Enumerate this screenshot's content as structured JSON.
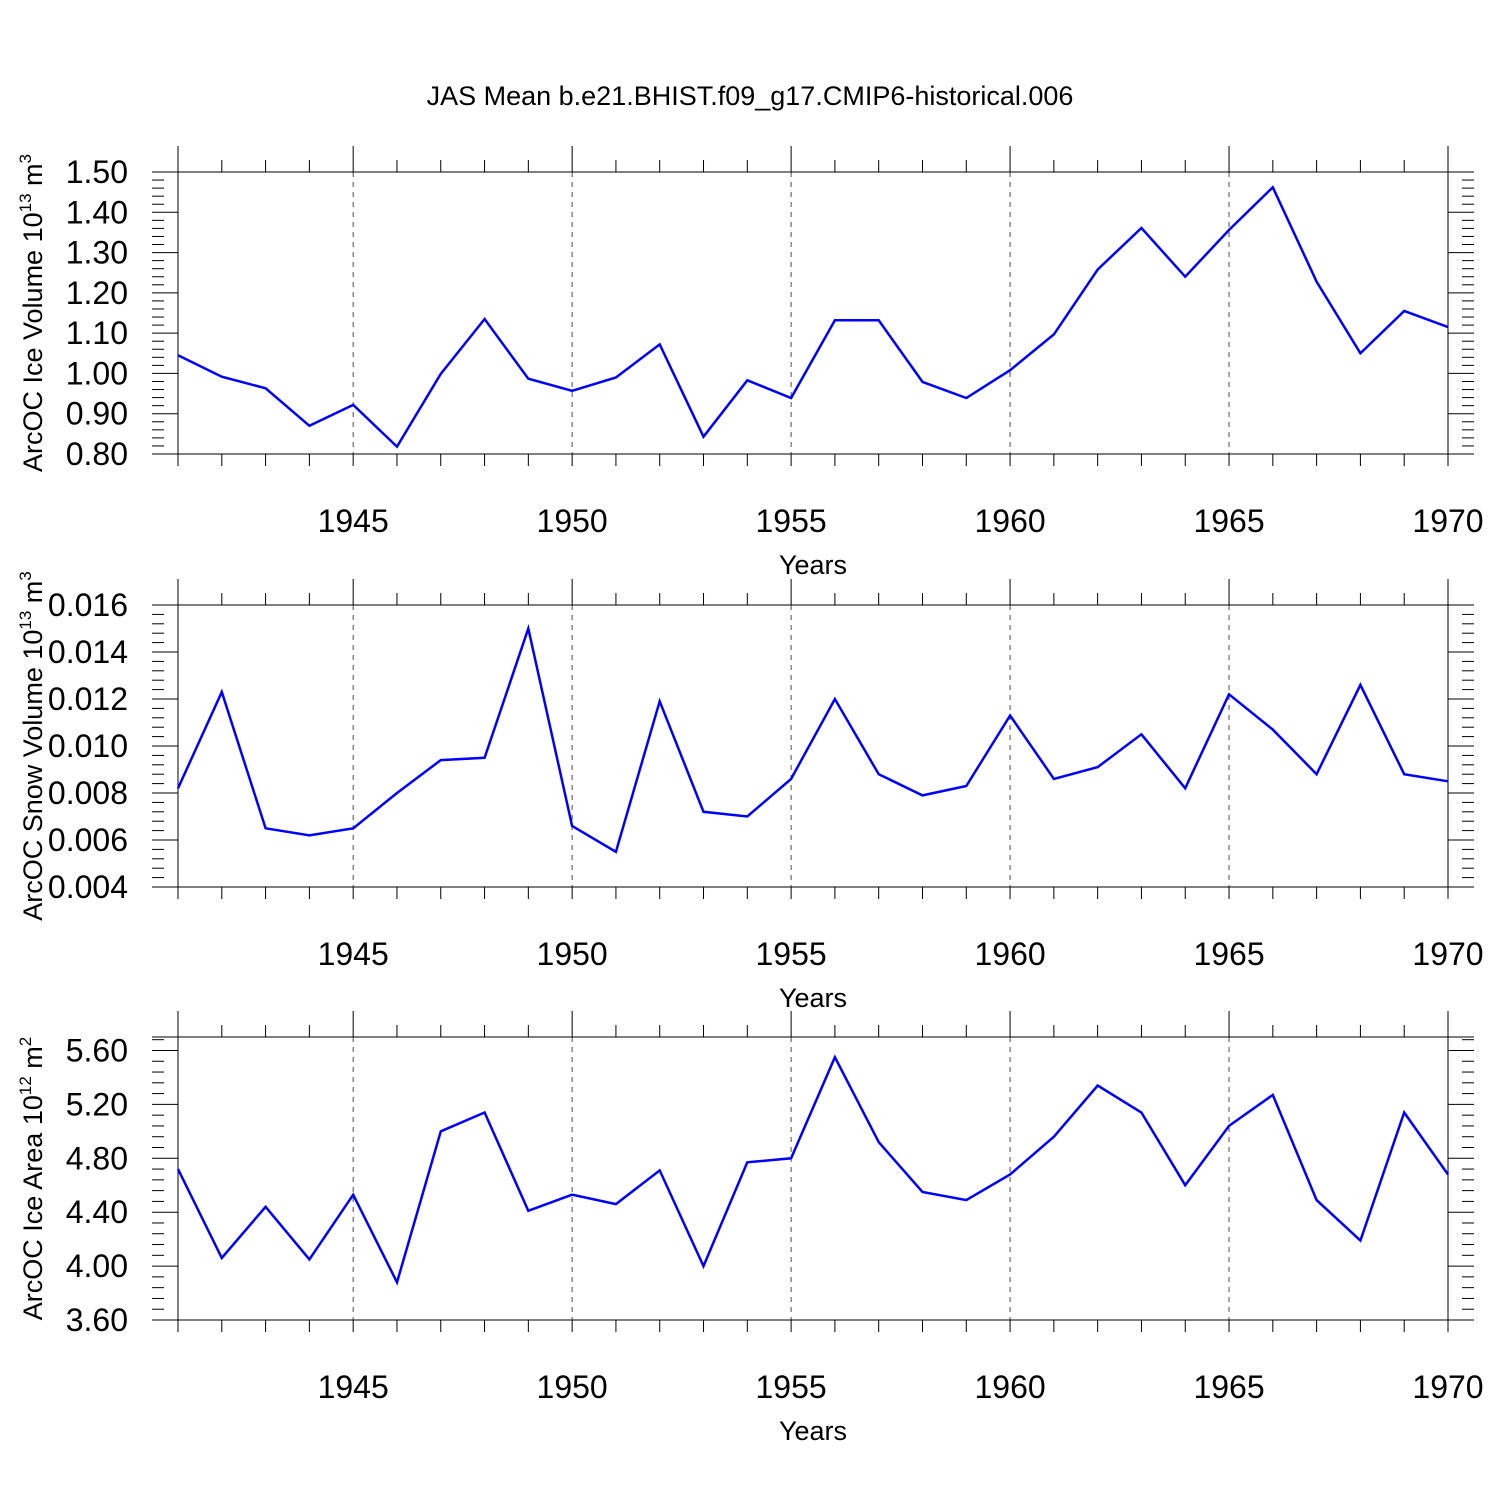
{
  "title": "JAS Mean b.e21.BHIST.f09_g17.CMIP6-historical.006",
  "colors": {
    "series": "#0000ff",
    "axis": "#000000",
    "grid": "#000000"
  },
  "chart_data": [
    {
      "type": "line",
      "xlabel": "Years",
      "ylabel": {
        "text": "ArcOC Ice Volume 10",
        "exp": "13",
        "unit": " m",
        "unit_exp": "3"
      },
      "x": [
        1941,
        1942,
        1943,
        1944,
        1945,
        1946,
        1947,
        1948,
        1949,
        1950,
        1951,
        1952,
        1953,
        1954,
        1955,
        1956,
        1957,
        1958,
        1959,
        1960,
        1961,
        1962,
        1963,
        1964,
        1965,
        1966,
        1967,
        1968,
        1969,
        1970
      ],
      "values": [
        1.045,
        0.992,
        0.963,
        0.87,
        0.922,
        0.818,
        0.999,
        1.135,
        0.987,
        0.957,
        0.99,
        1.072,
        0.843,
        0.983,
        0.939,
        1.132,
        1.132,
        0.979,
        0.939,
        1.008,
        1.097,
        1.258,
        1.361,
        1.24,
        1.356,
        1.462,
        1.228,
        1.05,
        1.155,
        1.115
      ],
      "xlim": [
        1941,
        1970
      ],
      "ylim": [
        0.8,
        1.5
      ],
      "yticks": [
        "0.80",
        "0.90",
        "1.00",
        "1.10",
        "1.20",
        "1.30",
        "1.40",
        "1.50"
      ],
      "xticks": [
        "1945",
        "1950",
        "1955",
        "1960",
        "1965",
        "1970"
      ],
      "vgrid": "dashed at 5-year ticks"
    },
    {
      "type": "line",
      "xlabel": "Years",
      "ylabel": {
        "text": "ArcOC Snow Volume 10",
        "exp": "13",
        "unit": " m",
        "unit_exp": "3"
      },
      "x": [
        1941,
        1942,
        1943,
        1944,
        1945,
        1946,
        1947,
        1948,
        1949,
        1950,
        1951,
        1952,
        1953,
        1954,
        1955,
        1956,
        1957,
        1958,
        1959,
        1960,
        1961,
        1962,
        1963,
        1964,
        1965,
        1966,
        1967,
        1968,
        1969,
        1970
      ],
      "values": [
        0.0082,
        0.0123,
        0.0065,
        0.0062,
        0.0065,
        0.008,
        0.0094,
        0.0095,
        0.015,
        0.0066,
        0.0055,
        0.0119,
        0.0072,
        0.007,
        0.0086,
        0.012,
        0.0088,
        0.0079,
        0.0083,
        0.0113,
        0.0086,
        0.0091,
        0.0105,
        0.0082,
        0.0122,
        0.0107,
        0.0088,
        0.0126,
        0.0088,
        0.0085
      ],
      "xlim": [
        1941,
        1970
      ],
      "ylim": [
        0.004,
        0.016
      ],
      "yticks": [
        "0.004",
        "0.006",
        "0.008",
        "0.010",
        "0.012",
        "0.014",
        "0.016"
      ],
      "xticks": [
        "1945",
        "1950",
        "1955",
        "1960",
        "1965",
        "1970"
      ],
      "vgrid": "dashed at 5-year ticks"
    },
    {
      "type": "line",
      "xlabel": "Years",
      "ylabel": {
        "text": "ArcOC Ice Area 10",
        "exp": "12",
        "unit": " m",
        "unit_exp": "2"
      },
      "x": [
        1941,
        1942,
        1943,
        1944,
        1945,
        1946,
        1947,
        1948,
        1949,
        1950,
        1951,
        1952,
        1953,
        1954,
        1955,
        1956,
        1957,
        1958,
        1959,
        1960,
        1961,
        1962,
        1963,
        1964,
        1965,
        1966,
        1967,
        1968,
        1969,
        1970
      ],
      "values": [
        4.72,
        4.06,
        4.44,
        4.05,
        4.53,
        3.88,
        5.0,
        5.14,
        4.41,
        4.53,
        4.46,
        4.71,
        4.0,
        4.77,
        4.8,
        5.55,
        4.92,
        4.55,
        4.49,
        4.68,
        4.96,
        5.34,
        5.14,
        4.6,
        5.04,
        5.27,
        4.49,
        4.19,
        5.14,
        4.68
      ],
      "xlim": [
        1941,
        1970
      ],
      "ylim": [
        3.6,
        5.7
      ],
      "yticks": [
        "3.60",
        "4.00",
        "4.40",
        "4.80",
        "5.20",
        "5.60"
      ],
      "xticks": [
        "1945",
        "1950",
        "1955",
        "1960",
        "1965",
        "1970"
      ],
      "vgrid": "dashed at 5-year ticks"
    }
  ]
}
